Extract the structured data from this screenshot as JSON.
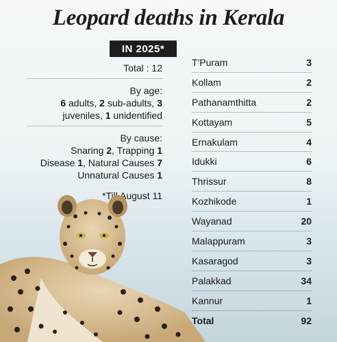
{
  "title": "Leopard deaths in Kerala",
  "badge": "IN 2025*",
  "total_line": "Total : 12",
  "by_age": {
    "heading": "By age:",
    "adults_n": "6",
    "adults_t": " adults, ",
    "sub_n": "2",
    "sub_t": " sub-adults, ",
    "juv_n": "3",
    "juv_t": "juveniles, ",
    "unid_n": "1",
    "unid_t": " unidentified"
  },
  "by_cause": {
    "heading": "By cause:",
    "snaring_t": "Snaring ",
    "snaring_n": "2",
    "trapping_t": ", Trapping ",
    "trapping_n": "1",
    "disease_t": "Disease ",
    "disease_n": "1",
    "natural_t": ", Natural Causes ",
    "natural_n": "7",
    "unnatural_t": "Unnatural Causes ",
    "unnatural_n": "1"
  },
  "footnote": "*Till August 11",
  "districts": [
    {
      "name": "T'Puram",
      "value": "3"
    },
    {
      "name": "Kollam",
      "value": "2"
    },
    {
      "name": "Pathanamthitta",
      "value": "2"
    },
    {
      "name": "Kottayam",
      "value": "5"
    },
    {
      "name": "Ernakulam",
      "value": "4"
    },
    {
      "name": "Idukki",
      "value": "6"
    },
    {
      "name": "Thrissur",
      "value": "8"
    },
    {
      "name": "Kozhikode",
      "value": "1"
    },
    {
      "name": "Wayanad",
      "value": "20"
    },
    {
      "name": "Malappuram",
      "value": "3"
    },
    {
      "name": "Kasaragod",
      "value": "3"
    },
    {
      "name": "Palakkad",
      "value": "34"
    },
    {
      "name": "Kannur",
      "value": "1"
    }
  ],
  "total": {
    "name": "Total",
    "value": "92"
  }
}
